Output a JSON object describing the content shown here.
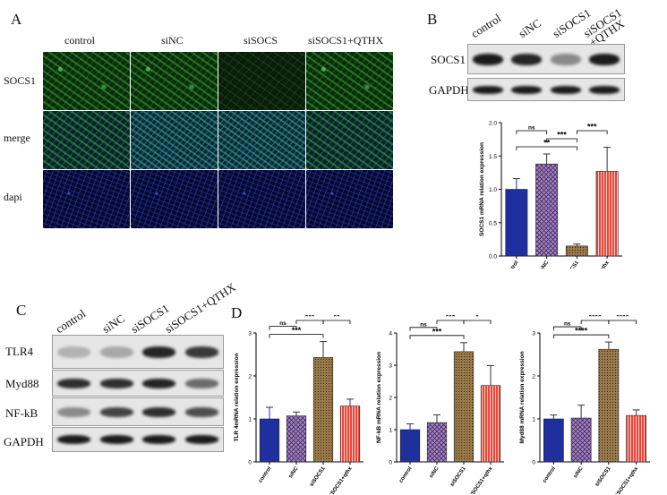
{
  "panelA": {
    "letter": "A",
    "columns": [
      "control",
      "siNC",
      "siSOCS",
      "siSOCS1+QTHX"
    ],
    "rows": [
      "SOCS1",
      "merge",
      "dapi"
    ]
  },
  "panelB": {
    "letter": "B",
    "lanes": [
      "control",
      "siNC",
      "siSOCS1",
      "siSOCS1\n+QTHX"
    ],
    "bands": [
      "SOCS1",
      "GAPDH"
    ],
    "band_intensity": {
      "SOCS1": [
        1.0,
        0.95,
        0.45,
        1.0
      ],
      "GAPDH": [
        1.0,
        1.0,
        1.0,
        1.0
      ]
    }
  },
  "panelC": {
    "letter": "C",
    "lanes": [
      "control",
      "siNC",
      "siSOCS1",
      "siSOCS1+QTHX"
    ],
    "bands": [
      "TLR4",
      "Myd88",
      "NF-kB",
      "GAPDH"
    ],
    "band_intensity": {
      "TLR4": [
        0.25,
        0.3,
        0.95,
        0.85
      ],
      "Myd88": [
        0.9,
        0.9,
        0.95,
        0.6
      ],
      "NF-kB": [
        0.45,
        0.8,
        0.9,
        0.75
      ],
      "GAPDH": [
        1.0,
        1.0,
        1.0,
        1.0
      ]
    }
  },
  "panelD": {
    "letter": "D"
  },
  "colors": {
    "control": "#1f2f9e",
    "siNC": "#a885c8",
    "siSOCS1": "#9a7a4a",
    "qthx": "#e8473a"
  },
  "chart_data": [
    {
      "id": "socs1",
      "type": "bar",
      "categories": [
        "control",
        "siNC",
        "siSOCS1",
        "siSOCS1+qthx"
      ],
      "values": [
        1.0,
        1.38,
        0.15,
        1.27
      ],
      "errors": [
        0.16,
        0.15,
        0.03,
        0.36
      ],
      "ylabel": "SOCS1 mRNA relation expression",
      "ylim": [
        0,
        2.0
      ],
      "yticks": [
        "0.0",
        "0.5",
        "1.0",
        "1.5",
        "2.0"
      ],
      "significance": [
        {
          "from": 0,
          "to": 2,
          "label": "**"
        },
        {
          "from": 1,
          "to": 2,
          "label": "***"
        },
        {
          "from": 0,
          "to": 1,
          "label": "ns"
        },
        {
          "from": 2,
          "to": 3,
          "label": "***"
        }
      ]
    },
    {
      "id": "tlr4",
      "type": "bar",
      "categories": [
        "control",
        "siNC",
        "siSOCS1",
        "siSOCS1+qthx"
      ],
      "values": [
        1.0,
        1.07,
        2.43,
        1.3
      ],
      "errors": [
        0.27,
        0.09,
        0.37,
        0.16
      ],
      "ylabel": "TLR 4mRNA relation expression",
      "ylim": [
        0,
        3
      ],
      "yticks": [
        "0",
        "1",
        "2",
        "3"
      ],
      "significance": [
        {
          "from": 0,
          "to": 2,
          "label": "***"
        },
        {
          "from": 0,
          "to": 1,
          "label": "ns"
        },
        {
          "from": 1,
          "to": 2,
          "label": "***"
        },
        {
          "from": 2,
          "to": 3,
          "label": "**"
        }
      ]
    },
    {
      "id": "nfkb",
      "type": "bar",
      "categories": [
        "control",
        "siNC",
        "siSOCS1",
        "siSOCS1+qthx"
      ],
      "values": [
        1.0,
        1.22,
        3.42,
        2.37
      ],
      "errors": [
        0.18,
        0.24,
        0.28,
        0.62
      ],
      "ylabel": "NF-kB mRNA relation expression",
      "ylim": [
        0,
        4
      ],
      "yticks": [
        "0",
        "1",
        "2",
        "3",
        "4"
      ],
      "significance": [
        {
          "from": 0,
          "to": 2,
          "label": "***"
        },
        {
          "from": 0,
          "to": 1,
          "label": "ns"
        },
        {
          "from": 1,
          "to": 2,
          "label": "***"
        },
        {
          "from": 2,
          "to": 3,
          "label": "*"
        }
      ]
    },
    {
      "id": "myd88",
      "type": "bar",
      "categories": [
        "control",
        "siNC",
        "siSOCS1",
        "siSOCS1+qthx"
      ],
      "values": [
        1.0,
        1.02,
        2.62,
        1.08
      ],
      "errors": [
        0.09,
        0.3,
        0.17,
        0.13
      ],
      "ylabel": "Myd88 mRNA relation expression",
      "ylim": [
        0,
        3
      ],
      "yticks": [
        "0",
        "1",
        "2",
        "3"
      ],
      "significance": [
        {
          "from": 0,
          "to": 2,
          "label": "****"
        },
        {
          "from": 0,
          "to": 1,
          "label": "ns"
        },
        {
          "from": 1,
          "to": 2,
          "label": "****"
        },
        {
          "from": 2,
          "to": 3,
          "label": "****"
        }
      ]
    }
  ]
}
